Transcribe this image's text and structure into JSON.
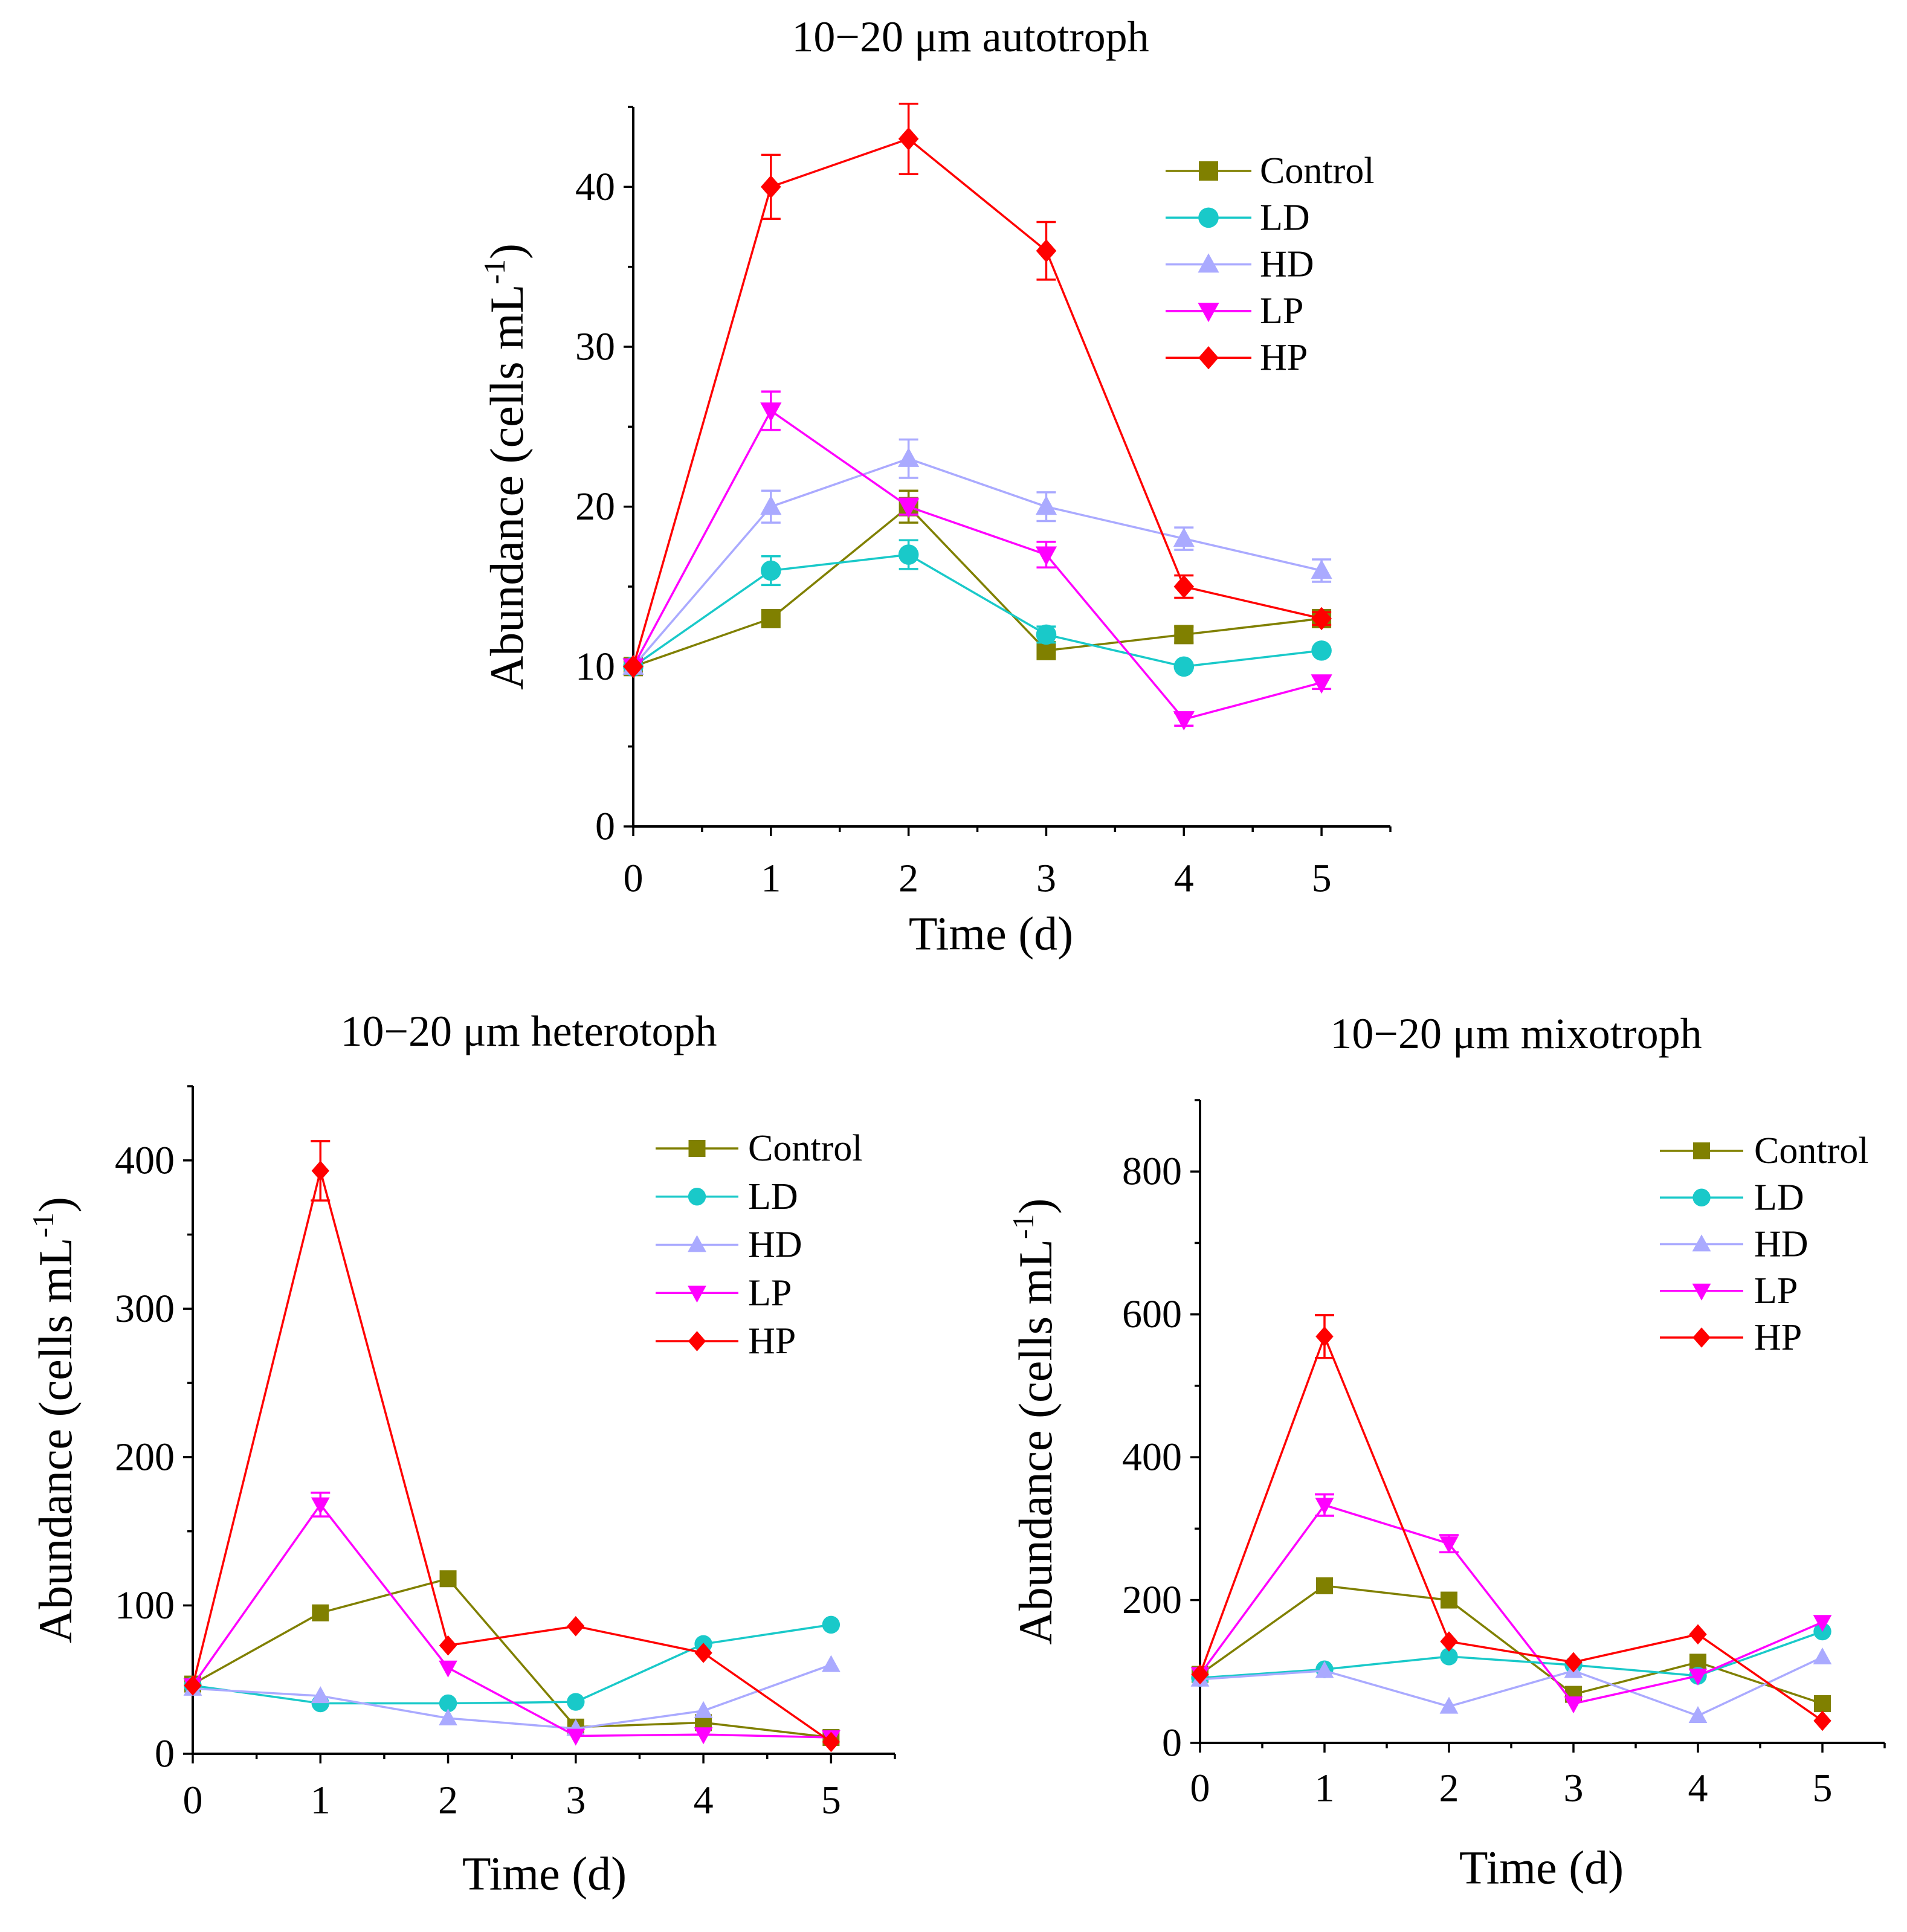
{
  "chart_data": [
    {
      "type": "line",
      "title": "10−20 μm autotroph",
      "xlabel": "Time (d)",
      "ylabel": {
        "text": "Abundance (cells mL",
        "sup": "-1",
        "close": ")"
      },
      "x": [
        0,
        1,
        2,
        3,
        4,
        5
      ],
      "xlim": [
        0,
        5.5
      ],
      "ylim": [
        0,
        45
      ],
      "xticks": [
        0,
        1,
        2,
        3,
        4,
        5
      ],
      "yticks": [
        0,
        10,
        20,
        30,
        40
      ],
      "xminor": 0.5,
      "yminor": 5,
      "legend": "top-right",
      "series": [
        {
          "name": "Control",
          "color": "#808000",
          "marker": "square",
          "values": [
            10,
            13,
            20,
            11,
            12,
            13
          ],
          "err": [
            0,
            0,
            1.0,
            0,
            0.5,
            0
          ]
        },
        {
          "name": "LD",
          "color": "#19c9c9",
          "marker": "circle",
          "values": [
            10,
            16,
            17,
            12,
            10,
            11
          ],
          "err": [
            0,
            0.9,
            0.9,
            0.5,
            0,
            0
          ]
        },
        {
          "name": "HD",
          "color": "#aaaaff",
          "marker": "triangle-up",
          "values": [
            10,
            20,
            23,
            20,
            18,
            16
          ],
          "err": [
            0,
            1.0,
            1.2,
            0.9,
            0.7,
            0.7
          ]
        },
        {
          "name": "LP",
          "color": "#ff00ff",
          "marker": "triangle-down",
          "values": [
            10,
            26,
            20,
            17,
            6.7,
            9
          ],
          "err": [
            0,
            1.2,
            0.5,
            0.8,
            0.4,
            0.4
          ]
        },
        {
          "name": "HP",
          "color": "#ff0000",
          "marker": "diamond",
          "values": [
            10,
            40,
            43,
            36,
            15,
            13
          ],
          "err": [
            0,
            2.0,
            2.2,
            1.8,
            0.7,
            0.4
          ]
        }
      ]
    },
    {
      "type": "line",
      "title": "10−20 μm heterotoph",
      "xlabel": "Time (d)",
      "ylabel": {
        "text": "Abundance (cells mL",
        "sup": "-1",
        "close": ")"
      },
      "x": [
        0,
        1,
        2,
        3,
        4,
        5
      ],
      "xlim": [
        0,
        5.5
      ],
      "ylim": [
        0,
        450
      ],
      "xticks": [
        0,
        1,
        2,
        3,
        4,
        5
      ],
      "yticks": [
        0,
        100,
        200,
        300,
        400
      ],
      "xminor": 0.5,
      "yminor": 50,
      "legend": "top-right",
      "series": [
        {
          "name": "Control",
          "color": "#808000",
          "marker": "square",
          "values": [
            47,
            95,
            118,
            18,
            21,
            11
          ],
          "err": [
            0,
            0,
            0,
            0,
            0,
            0
          ]
        },
        {
          "name": "LD",
          "color": "#19c9c9",
          "marker": "circle",
          "values": [
            46,
            34,
            34,
            35,
            74,
            87
          ],
          "err": [
            0,
            0,
            0,
            0,
            0,
            0
          ]
        },
        {
          "name": "HD",
          "color": "#aaaaff",
          "marker": "triangle-up",
          "values": [
            44,
            39,
            24,
            17,
            29,
            60
          ],
          "err": [
            0,
            0,
            0,
            0,
            0,
            0
          ]
        },
        {
          "name": "LP",
          "color": "#ff00ff",
          "marker": "triangle-down",
          "values": [
            46,
            168,
            58,
            12,
            13,
            11
          ],
          "err": [
            0,
            8,
            0,
            0,
            0,
            0
          ]
        },
        {
          "name": "HP",
          "color": "#ff0000",
          "marker": "diamond",
          "values": [
            46,
            393,
            73,
            86,
            68,
            8
          ],
          "err": [
            0,
            20,
            0,
            0,
            0,
            0
          ]
        }
      ]
    },
    {
      "type": "line",
      "title": "10−20 μm mixotroph",
      "xlabel": "Time (d)",
      "ylabel": {
        "text": "Abundance (cells mL",
        "sup": "-1",
        "close": ")"
      },
      "x": [
        0,
        1,
        2,
        3,
        4,
        5
      ],
      "xlim": [
        0,
        5.5
      ],
      "ylim": [
        0,
        900
      ],
      "xticks": [
        0,
        1,
        2,
        3,
        4,
        5
      ],
      "yticks": [
        0,
        200,
        400,
        600,
        800
      ],
      "xminor": 0.5,
      "yminor": 100,
      "legend": "top-right",
      "series": [
        {
          "name": "Control",
          "color": "#808000",
          "marker": "square",
          "values": [
            96,
            220,
            200,
            68,
            113,
            55
          ],
          "err": [
            0,
            0,
            0,
            0,
            0,
            0
          ]
        },
        {
          "name": "LD",
          "color": "#19c9c9",
          "marker": "circle",
          "values": [
            91,
            103,
            121,
            109,
            94,
            156
          ],
          "err": [
            0,
            0,
            0,
            0,
            0,
            0
          ]
        },
        {
          "name": "HD",
          "color": "#aaaaff",
          "marker": "triangle-up",
          "values": [
            89,
            101,
            51,
            101,
            38,
            120
          ],
          "err": [
            0,
            0,
            0,
            0,
            0,
            0
          ]
        },
        {
          "name": "LP",
          "color": "#ff00ff",
          "marker": "triangle-down",
          "values": [
            96,
            333,
            279,
            55,
            94,
            169
          ],
          "err": [
            0,
            15,
            12,
            0,
            0,
            0
          ]
        },
        {
          "name": "HP",
          "color": "#ff0000",
          "marker": "diamond",
          "values": [
            96,
            569,
            142,
            113,
            152,
            31
          ],
          "err": [
            0,
            30,
            0,
            0,
            0,
            0
          ]
        }
      ]
    }
  ]
}
